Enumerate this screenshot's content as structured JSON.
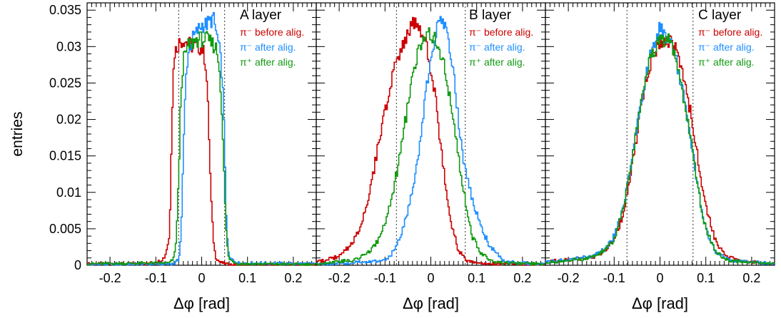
{
  "ylabel": "entries",
  "legend": [
    {
      "text": "π⁻ before alig.",
      "color": "#cc0000"
    },
    {
      "text": "π⁻ after alig.",
      "color": "#1e8fff"
    },
    {
      "text": "π⁺ after alig.",
      "color": "#119911"
    }
  ],
  "chart_data": [
    {
      "type": "line",
      "title": "A layer",
      "xlabel": "Δφ [rad]",
      "ylabel": "entries",
      "xlim": [
        -0.25,
        0.25
      ],
      "ylim": [
        0,
        0.036
      ],
      "x_ticks": [
        -0.2,
        -0.1,
        0,
        0.1,
        0.2
      ],
      "x_tick_labels": [
        "-0.2",
        "-0.1",
        "0",
        "0.1",
        "0.2"
      ],
      "y_ticks": [
        0,
        0.005,
        0.01,
        0.015,
        0.02,
        0.025,
        0.03,
        0.035
      ],
      "y_tick_labels": [
        "0",
        "0.005",
        "0.01",
        "0.015",
        "0.02",
        "0.025",
        "0.03",
        "0.035"
      ],
      "cut_lines": [
        -0.05,
        0.05
      ],
      "series": [
        {
          "name": "π⁻ before alig.",
          "color": "#cc0000",
          "x": [
            -0.25,
            -0.12,
            -0.09,
            -0.08,
            -0.07,
            -0.065,
            -0.06,
            -0.05,
            -0.04,
            -0.03,
            -0.02,
            -0.01,
            0,
            0.005,
            0.01,
            0.015,
            0.02,
            0.025,
            0.03,
            0.04,
            0.06,
            0.25
          ],
          "y": [
            0.0002,
            0.0002,
            0.0006,
            0.0012,
            0.004,
            0.02,
            0.029,
            0.0305,
            0.031,
            0.0305,
            0.03,
            0.03,
            0.0298,
            0.029,
            0.027,
            0.02,
            0.01,
            0.004,
            0.0012,
            0.0004,
            0.0001,
            0.0001
          ]
        },
        {
          "name": "π⁻ after alig.",
          "color": "#1e8fff",
          "x": [
            -0.25,
            -0.06,
            -0.05,
            -0.045,
            -0.04,
            -0.035,
            -0.03,
            -0.02,
            -0.01,
            0,
            0.01,
            0.02,
            0.025,
            0.03,
            0.035,
            0.04,
            0.045,
            0.05,
            0.055,
            0.06,
            0.08,
            0.25
          ],
          "y": [
            0.0001,
            0.0002,
            0.0008,
            0.004,
            0.015,
            0.025,
            0.029,
            0.031,
            0.032,
            0.033,
            0.033,
            0.0335,
            0.034,
            0.0325,
            0.031,
            0.029,
            0.026,
            0.017,
            0.004,
            0.001,
            0.0003,
            0.0002
          ]
        },
        {
          "name": "π⁺ after alig.",
          "color": "#119911",
          "x": [
            -0.25,
            -0.07,
            -0.06,
            -0.055,
            -0.05,
            -0.045,
            -0.04,
            -0.03,
            -0.02,
            -0.01,
            0,
            0.01,
            0.02,
            0.03,
            0.035,
            0.04,
            0.045,
            0.05,
            0.055,
            0.06,
            0.08,
            0.25
          ],
          "y": [
            0.0002,
            0.0003,
            0.001,
            0.004,
            0.012,
            0.024,
            0.028,
            0.03,
            0.0305,
            0.031,
            0.031,
            0.031,
            0.0305,
            0.03,
            0.029,
            0.026,
            0.02,
            0.01,
            0.003,
            0.0008,
            0.0002,
            0.0001
          ]
        }
      ]
    },
    {
      "type": "line",
      "title": "B layer",
      "xlabel": "Δφ [rad]",
      "ylabel": "entries",
      "xlim": [
        -0.25,
        0.25
      ],
      "ylim": [
        0,
        0.036
      ],
      "x_ticks": [
        -0.2,
        -0.1,
        0,
        0.1,
        0.2
      ],
      "x_tick_labels": [
        "-0.2",
        "-0.1",
        "0",
        "0.1",
        "0.2"
      ],
      "y_ticks": [
        0,
        0.005,
        0.01,
        0.015,
        0.02,
        0.025,
        0.03,
        0.035
      ],
      "y_tick_labels": [
        "0",
        "0.005",
        "0.01",
        "0.015",
        "0.02",
        "0.025",
        "0.03",
        "0.035"
      ],
      "cut_lines": [
        -0.075,
        0.075
      ],
      "series": [
        {
          "name": "π⁻ before alig.",
          "color": "#cc0000",
          "x": [
            -0.25,
            -0.2,
            -0.17,
            -0.15,
            -0.13,
            -0.11,
            -0.09,
            -0.07,
            -0.05,
            -0.03,
            -0.02,
            -0.01,
            0,
            0.01,
            0.02,
            0.03,
            0.04,
            0.06,
            0.08,
            0.1,
            0.25
          ],
          "y": [
            0.0004,
            0.0012,
            0.003,
            0.006,
            0.011,
            0.018,
            0.024,
            0.029,
            0.032,
            0.0335,
            0.032,
            0.03,
            0.027,
            0.023,
            0.017,
            0.012,
            0.007,
            0.002,
            0.0006,
            0.0002,
            0.0001
          ]
        },
        {
          "name": "π⁻ after alig.",
          "color": "#1e8fff",
          "x": [
            -0.25,
            -0.1,
            -0.08,
            -0.06,
            -0.04,
            -0.03,
            -0.02,
            -0.01,
            0,
            0.01,
            0.02,
            0.03,
            0.04,
            0.05,
            0.06,
            0.07,
            0.09,
            0.11,
            0.13,
            0.16,
            0.25
          ],
          "y": [
            0.0001,
            0.0006,
            0.002,
            0.005,
            0.01,
            0.014,
            0.019,
            0.024,
            0.028,
            0.031,
            0.035,
            0.033,
            0.03,
            0.026,
            0.02,
            0.015,
            0.009,
            0.005,
            0.0025,
            0.0005,
            0.0001
          ]
        },
        {
          "name": "π⁺ after alig.",
          "color": "#119911",
          "x": [
            -0.25,
            -0.16,
            -0.13,
            -0.11,
            -0.09,
            -0.07,
            -0.05,
            -0.03,
            -0.01,
            0,
            0.01,
            0.03,
            0.05,
            0.06,
            0.07,
            0.08,
            0.09,
            0.11,
            0.14,
            0.25
          ],
          "y": [
            0.0002,
            0.0008,
            0.002,
            0.004,
            0.008,
            0.014,
            0.022,
            0.029,
            0.0315,
            0.032,
            0.031,
            0.027,
            0.02,
            0.015,
            0.011,
            0.007,
            0.004,
            0.0015,
            0.0004,
            0.0001
          ]
        }
      ]
    },
    {
      "type": "line",
      "title": "C layer",
      "xlabel": "Δφ [rad]",
      "ylabel": "entries",
      "xlim": [
        -0.25,
        0.25
      ],
      "ylim": [
        0,
        0.036
      ],
      "x_ticks": [
        -0.2,
        -0.1,
        0,
        0.1,
        0.2
      ],
      "x_tick_labels": [
        "-0.2",
        "-0.1",
        "0",
        "0.1",
        "0.2"
      ],
      "y_ticks": [
        0,
        0.005,
        0.01,
        0.015,
        0.02,
        0.025,
        0.03,
        0.035
      ],
      "y_tick_labels": [
        "0",
        "0.005",
        "0.01",
        "0.015",
        "0.02",
        "0.025",
        "0.03",
        "0.035"
      ],
      "cut_lines": [
        -0.072,
        0.072
      ],
      "series": [
        {
          "name": "π⁻ before alig.",
          "color": "#cc0000",
          "x": [
            -0.25,
            -0.15,
            -0.12,
            -0.1,
            -0.08,
            -0.06,
            -0.04,
            -0.02,
            0,
            0.02,
            0.04,
            0.06,
            0.07,
            0.08,
            0.09,
            0.1,
            0.12,
            0.14,
            0.17,
            0.25
          ],
          "y": [
            0.0005,
            0.001,
            0.002,
            0.0035,
            0.007,
            0.014,
            0.022,
            0.028,
            0.031,
            0.031,
            0.029,
            0.023,
            0.02,
            0.016,
            0.011,
            0.008,
            0.0035,
            0.0015,
            0.0006,
            0.0002
          ]
        },
        {
          "name": "π⁻ after alig.",
          "color": "#1e8fff",
          "x": [
            -0.25,
            -0.15,
            -0.12,
            -0.1,
            -0.08,
            -0.06,
            -0.04,
            -0.02,
            0,
            0.02,
            0.04,
            0.06,
            0.07,
            0.08,
            0.09,
            0.1,
            0.12,
            0.15,
            0.25
          ],
          "y": [
            0.0004,
            0.0012,
            0.0022,
            0.004,
            0.008,
            0.015,
            0.023,
            0.029,
            0.0325,
            0.031,
            0.027,
            0.02,
            0.016,
            0.012,
            0.008,
            0.005,
            0.002,
            0.0007,
            0.0002
          ]
        },
        {
          "name": "π⁺ after alig.",
          "color": "#119911",
          "x": [
            -0.25,
            -0.15,
            -0.12,
            -0.1,
            -0.08,
            -0.06,
            -0.04,
            -0.02,
            0,
            0.02,
            0.04,
            0.06,
            0.07,
            0.08,
            0.09,
            0.1,
            0.12,
            0.15,
            0.25
          ],
          "y": [
            0.0003,
            0.001,
            0.002,
            0.0035,
            0.008,
            0.015,
            0.023,
            0.029,
            0.031,
            0.031,
            0.027,
            0.02,
            0.016,
            0.012,
            0.008,
            0.005,
            0.002,
            0.0006,
            0.0002
          ]
        }
      ]
    }
  ]
}
